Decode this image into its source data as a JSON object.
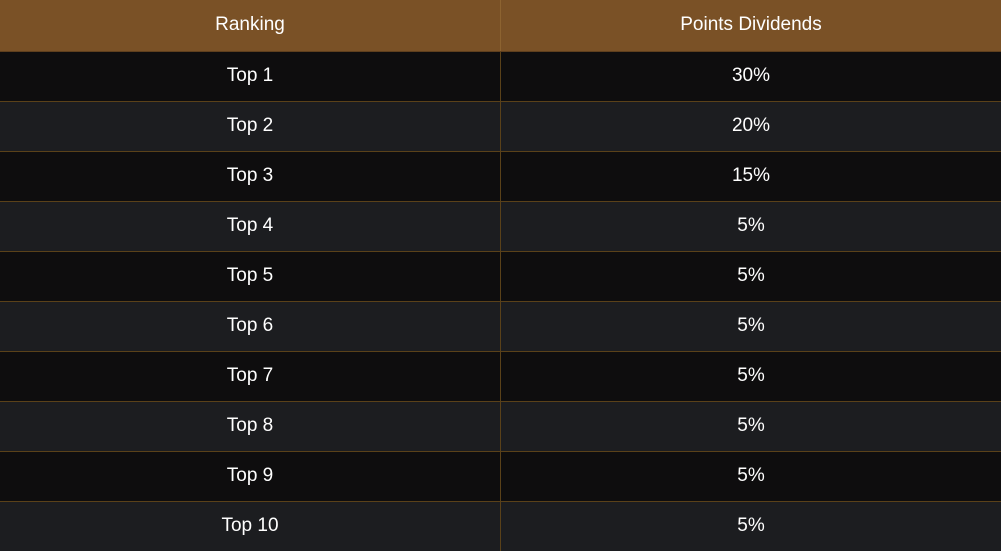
{
  "table": {
    "headers": [
      "Ranking",
      "Points Dividends"
    ],
    "rows": [
      {
        "rank": "Top 1",
        "dividend": "30%"
      },
      {
        "rank": "Top 2",
        "dividend": "20%"
      },
      {
        "rank": "Top 3",
        "dividend": "15%"
      },
      {
        "rank": "Top 4",
        "dividend": "5%"
      },
      {
        "rank": "Top 5",
        "dividend": "5%"
      },
      {
        "rank": "Top 6",
        "dividend": "5%"
      },
      {
        "rank": "Top 7",
        "dividend": "5%"
      },
      {
        "rank": "Top 8",
        "dividend": "5%"
      },
      {
        "rank": "Top 9",
        "dividend": "5%"
      },
      {
        "rank": "Top 10",
        "dividend": "5%"
      }
    ]
  },
  "colors": {
    "header_bg": "#7a5126",
    "row_dark": "#0e0d0e",
    "row_light": "#1c1d20",
    "divider": "#5a4119",
    "text": "#ffffff"
  }
}
